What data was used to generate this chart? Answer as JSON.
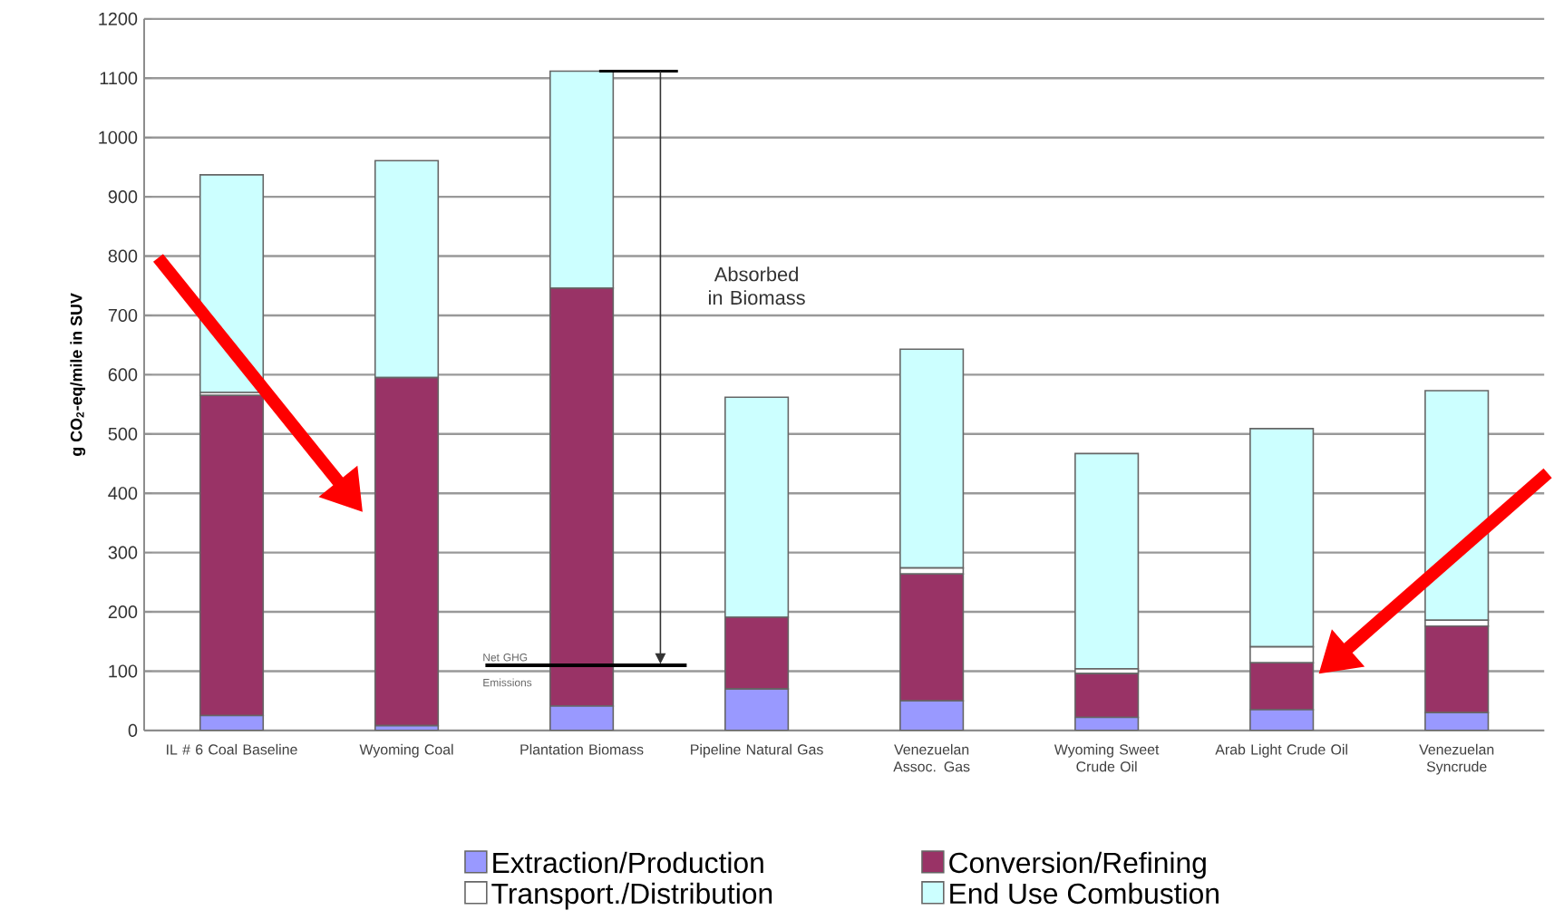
{
  "chart_data": {
    "type": "bar",
    "stacked": true,
    "ylabel": "g CO$_{2}$-eq/mile in SUV",
    "categories": [
      "IL # 6 Coal Baseline",
      "Wyoming Coal",
      "Plantation Biomass",
      "Pipeline Natural Gas",
      "Venezuelan Assoc. Gas",
      "Wyoming Sweet Crude Oil",
      "Arab Light Crude Oil",
      "Venezuelan Syncrude"
    ],
    "series": [
      {
        "name": "Extraction/Production",
        "color": "#9999ff",
        "values": [
          25,
          8,
          41,
          70,
          50,
          22,
          35,
          30
        ]
      },
      {
        "name": "Conversion/Refining",
        "color": "#993366",
        "values": [
          540,
          587,
          705,
          121,
          214,
          74,
          79,
          146
        ]
      },
      {
        "name": "Transport./Distribution",
        "color": "#ffffff",
        "values": [
          5,
          0,
          0,
          0,
          10,
          8,
          27,
          10
        ]
      },
      {
        "name": "End Use Combustion",
        "color": "#ccffff",
        "values": [
          367,
          366,
          366,
          371,
          369,
          363,
          368,
          387
        ]
      }
    ],
    "ylim": [
      0,
      1200
    ],
    "yticks": [
      0,
      100,
      200,
      300,
      400,
      500,
      600,
      700,
      800,
      900,
      1000,
      1100,
      1200
    ],
    "grid": "y",
    "legend": "bottom",
    "annotations": [
      "Absorbed in Biomass",
      "Net GHG Emissions"
    ]
  }
}
